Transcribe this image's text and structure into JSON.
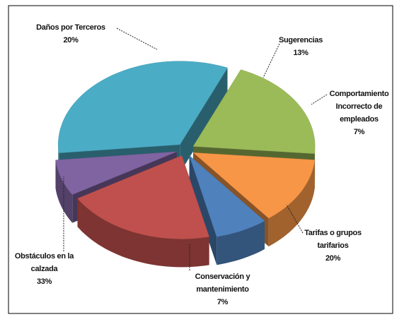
{
  "chart_data": {
    "type": "pie",
    "categories": [
      "Daños por Terceros",
      "Sugerencias",
      "Comportamiento Incorrecto de empleados",
      "Tarifas o grupos tarifarios",
      "Conservación y mantenimiento",
      "Obstáculos en la calzada"
    ],
    "values": [
      20,
      13,
      7,
      20,
      7,
      33
    ],
    "value_labels": [
      "20%",
      "13%",
      "7%",
      "20%",
      "7%",
      "33%"
    ],
    "colors": [
      "#9bbb59",
      "#f79646",
      "#4f81bd",
      "#c0504d",
      "#8064a2",
      "#4bacc6"
    ],
    "three_d": true,
    "exploded": true
  }
}
